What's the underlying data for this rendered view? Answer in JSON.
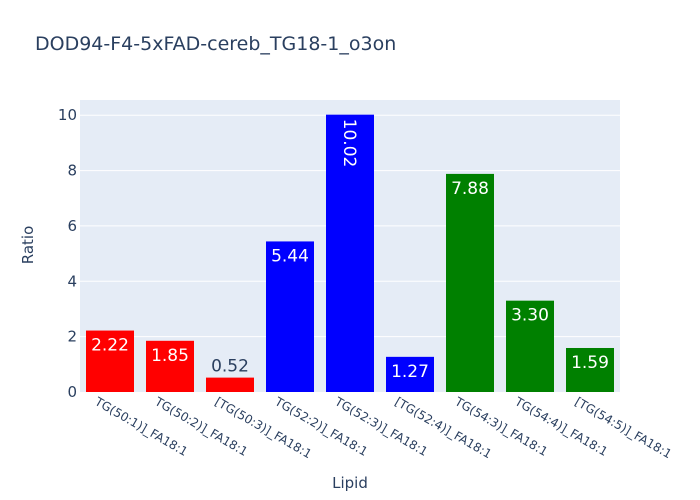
{
  "chart_data": {
    "type": "bar",
    "title": "DOD94-F4-5xFAD-cereb_TG18-1_o3on",
    "xlabel": "Lipid",
    "ylabel": "Ratio",
    "categories": [
      "TG(50:1)]_FA18:1",
      "TG(50:2)]_FA18:1",
      "[TG(50:3)]_FA18:1",
      "TG(52:2)]_FA18:1",
      "TG(52:3)]_FA18:1",
      "[TG(52:4)]_FA18:1",
      "TG(54:3)]_FA18:1",
      "TG(54:4)]_FA18:1",
      "[TG(54:5)]_FA18:1"
    ],
    "values": [
      2.22,
      1.85,
      0.52,
      5.44,
      10.02,
      1.27,
      7.88,
      3.3,
      1.59
    ],
    "data_labels": [
      "2.22",
      "1.85",
      "0.52",
      "5.44",
      "10.02",
      "1.27",
      "7.88",
      "3.30",
      "1.59"
    ],
    "bar_colors": [
      "#ff0000",
      "#ff0000",
      "#ff0000",
      "#0000ff",
      "#0000ff",
      "#0000ff",
      "#008000",
      "#008000",
      "#008000"
    ],
    "ylim": [
      0,
      10.55
    ],
    "yticks": [
      0,
      2,
      4,
      6,
      8,
      10
    ],
    "ytick_labels": [
      "0",
      "2",
      "4",
      "6",
      "8",
      "10"
    ],
    "grid": true,
    "legend": false,
    "plot_background": "#e5ecf6",
    "grid_color": "#ffffff",
    "text_color": "#2a3f5f"
  }
}
